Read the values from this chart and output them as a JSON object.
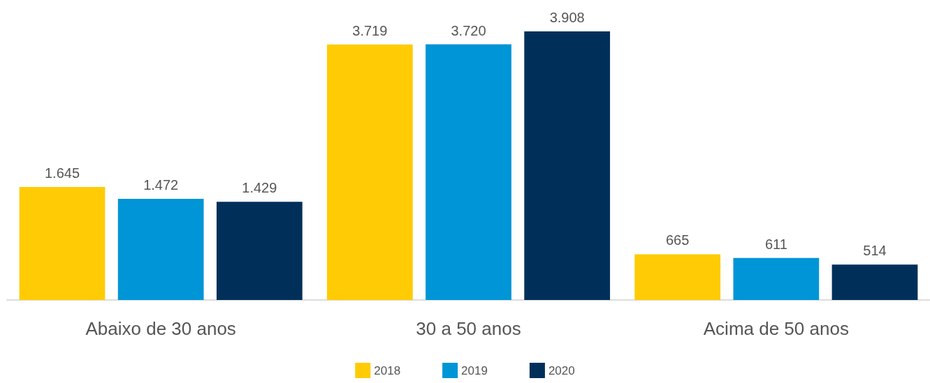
{
  "chart_data": {
    "type": "bar",
    "categories": [
      "Abaixo de 30 anos",
      "30 a 50 anos",
      "Acima de 50 anos"
    ],
    "series": [
      {
        "name": "2018",
        "color": "#ffcb05",
        "values": [
          1645,
          3719,
          665
        ],
        "value_labels": [
          "1.645",
          "3.719",
          "665"
        ]
      },
      {
        "name": "2019",
        "color": "#0095d6",
        "values": [
          1472,
          3720,
          611
        ],
        "value_labels": [
          "1.472",
          "3.720",
          "611"
        ]
      },
      {
        "name": "2020",
        "color": "#00305a",
        "values": [
          1429,
          3908,
          514
        ],
        "value_labels": [
          "1.429",
          "3.908",
          "514"
        ]
      }
    ],
    "legend": "bottom"
  }
}
